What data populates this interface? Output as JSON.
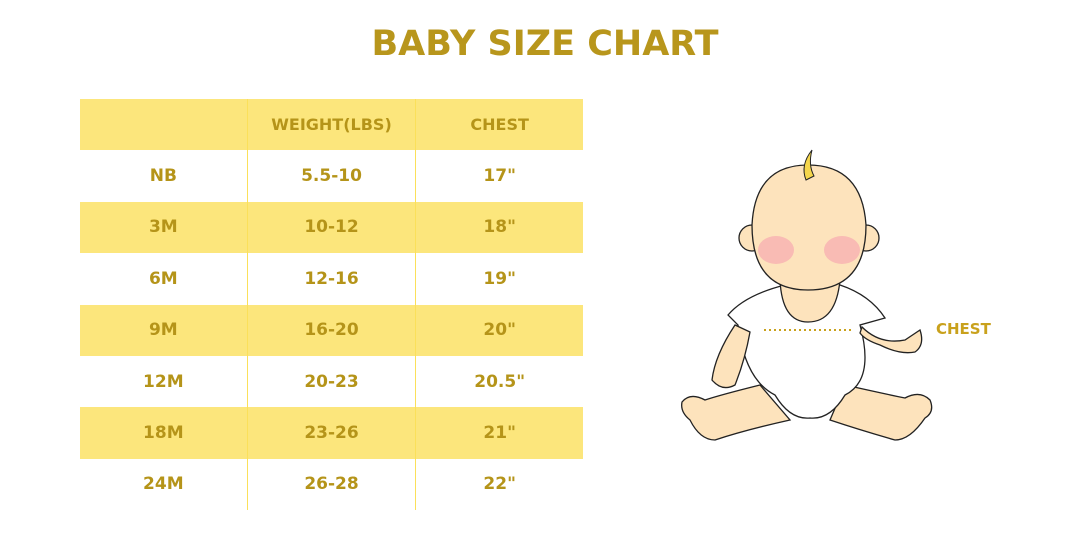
{
  "title": "BABY SIZE CHART",
  "table": {
    "headers": [
      "",
      "WEIGHT(LBS)",
      "CHEST"
    ],
    "rows": [
      [
        "NB",
        "5.5-10",
        "17\""
      ],
      [
        "3M",
        "10-12",
        "18\""
      ],
      [
        "6M",
        "12-16",
        "19\""
      ],
      [
        "9M",
        "16-20",
        "20\""
      ],
      [
        "12M",
        "20-23",
        "20.5\""
      ],
      [
        "18M",
        "23-26",
        "21\""
      ],
      [
        "24M",
        "26-28",
        "22\""
      ]
    ]
  },
  "illustration": {
    "chest_label": "CHEST"
  },
  "colors": {
    "accent": "#b8961c",
    "row_highlight": "#fce67c",
    "skin": "#fde3bc"
  }
}
